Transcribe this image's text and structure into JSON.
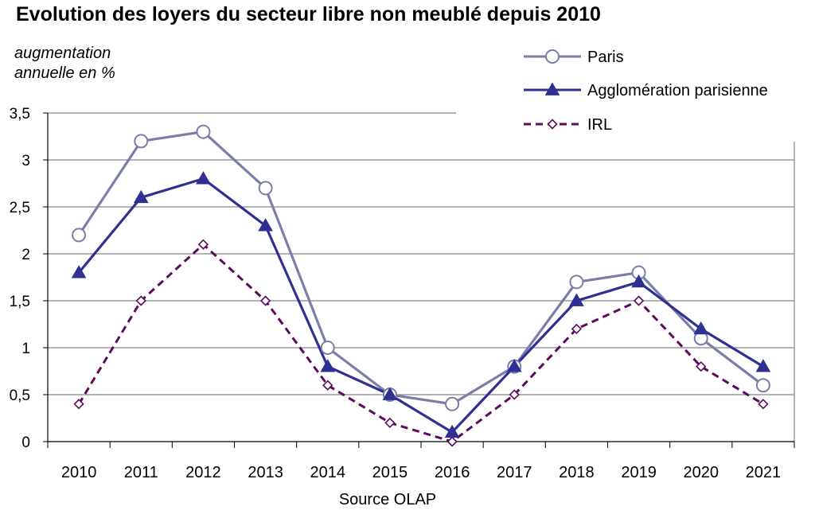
{
  "title": "Evolution des loyers du secteur  libre non meublé depuis 2010",
  "ylabel_lines": [
    "augmentation",
    "annuelle en %"
  ],
  "source": "Source OLAP",
  "chart_data": {
    "type": "line",
    "title": "Evolution des loyers du secteur  libre non meublé depuis 2010",
    "xlabel": "Source OLAP",
    "ylabel": "augmentation annuelle en %",
    "categories": [
      "2010",
      "2011",
      "2012",
      "2013",
      "2014",
      "2015",
      "2016",
      "2017",
      "2018",
      "2019",
      "2020",
      "2021"
    ],
    "ylim": [
      0,
      3.5
    ],
    "yticks": [
      0,
      0.5,
      1,
      1.5,
      2,
      2.5,
      3,
      3.5
    ],
    "ytick_labels": [
      "0",
      "0,5",
      "1",
      "1,5",
      "2",
      "2,5",
      "3",
      "3,5"
    ],
    "grid": true,
    "legend_position": "top-right",
    "series": [
      {
        "name": "Paris",
        "color": "#7b7ea8",
        "marker": "circle",
        "dash": "solid",
        "values": [
          2.2,
          3.2,
          3.3,
          2.7,
          1.0,
          0.5,
          0.4,
          0.8,
          1.7,
          1.8,
          1.1,
          0.6
        ]
      },
      {
        "name": "Agglomération parisienne",
        "color": "#2e3192",
        "marker": "triangle",
        "dash": "solid",
        "values": [
          1.8,
          2.6,
          2.8,
          2.3,
          0.8,
          0.5,
          0.1,
          0.8,
          1.5,
          1.7,
          1.2,
          0.8
        ]
      },
      {
        "name": "IRL",
        "color": "#5c0a5c",
        "marker": "diamond",
        "dash": "dashed",
        "values": [
          0.4,
          1.5,
          2.1,
          1.5,
          0.6,
          0.2,
          0.0,
          0.5,
          1.2,
          1.5,
          0.8,
          0.4
        ]
      }
    ]
  }
}
